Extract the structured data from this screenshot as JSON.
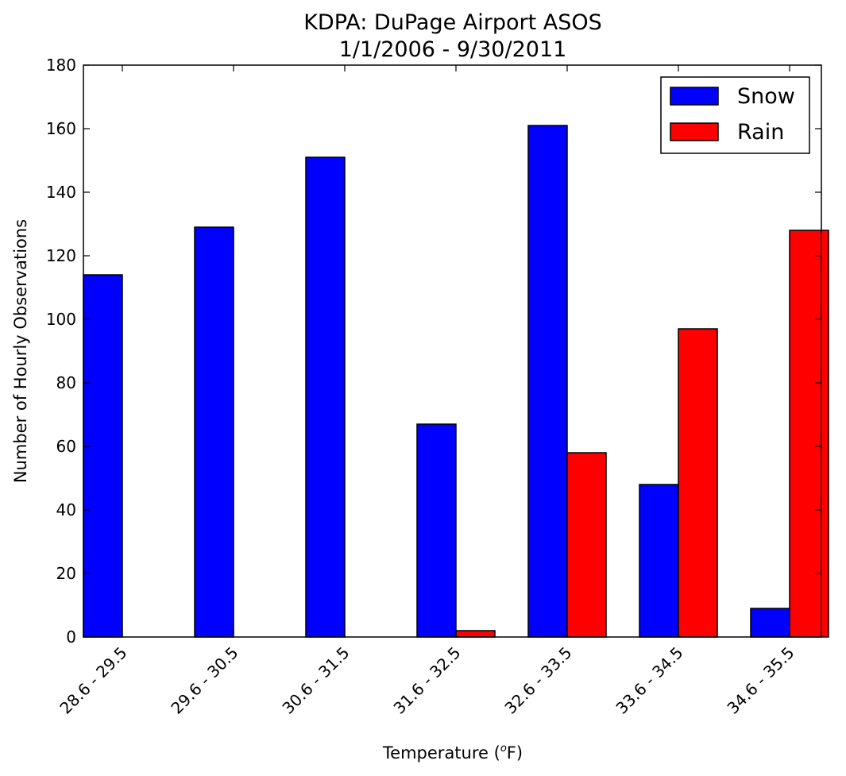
{
  "chart_data": {
    "type": "bar",
    "title": "KDPA: DuPage Airport ASOS",
    "subtitle": "1/1/2006 - 9/30/2011",
    "xlabel": "Temperature (",
    "xlabel_sup": "o",
    "xlabel_unit": "F)",
    "ylabel": "Number of Hourly Observations",
    "ylim": [
      0,
      180
    ],
    "yticks": [
      0,
      20,
      40,
      60,
      80,
      100,
      120,
      140,
      160,
      180
    ],
    "categories": [
      "28.6 - 29.5",
      "29.6 - 30.5",
      "30.6 - 31.5",
      "31.6 - 32.5",
      "32.6 - 33.5",
      "33.6 - 34.5",
      "34.6 - 35.5"
    ],
    "series": [
      {
        "name": "Snow",
        "color": "#0000ff",
        "values": [
          114,
          129,
          151,
          67,
          161,
          48,
          9
        ]
      },
      {
        "name": "Rain",
        "color": "#ff0000",
        "values": [
          0,
          0,
          0,
          2,
          58,
          97,
          128
        ]
      }
    ],
    "legend_position": "top-right",
    "grid": false
  }
}
